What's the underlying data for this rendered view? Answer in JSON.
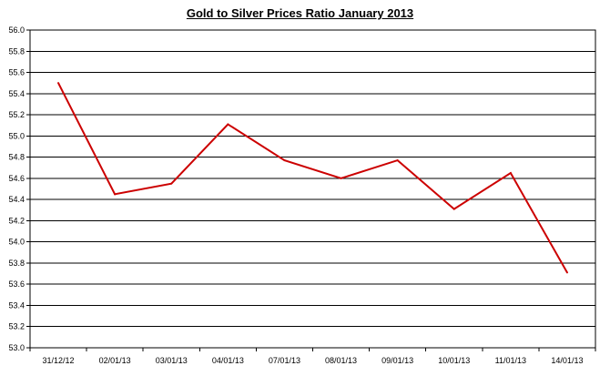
{
  "chart_data": {
    "type": "line",
    "title": "Gold to Silver Prices Ratio January 2013",
    "xlabel": "",
    "ylabel": "",
    "categories": [
      "31/12/12",
      "02/01/13",
      "03/01/13",
      "04/01/13",
      "07/01/13",
      "08/01/13",
      "09/01/13",
      "10/01/13",
      "11/01/13",
      "14/01/13"
    ],
    "series": [
      {
        "values": [
          55.5,
          54.45,
          54.55,
          55.11,
          54.77,
          54.6,
          54.77,
          54.31,
          54.65,
          53.71
        ]
      }
    ],
    "ylim": [
      53.0,
      56.0
    ],
    "yticks": [
      "53.0",
      "53.2",
      "53.4",
      "53.6",
      "53.8",
      "54.0",
      "54.2",
      "54.4",
      "54.6",
      "54.8",
      "55.0",
      "55.2",
      "55.4",
      "55.6",
      "55.8",
      "56.0"
    ],
    "grid": "horizontal",
    "line_color": "#cc0000",
    "legend": "none"
  }
}
